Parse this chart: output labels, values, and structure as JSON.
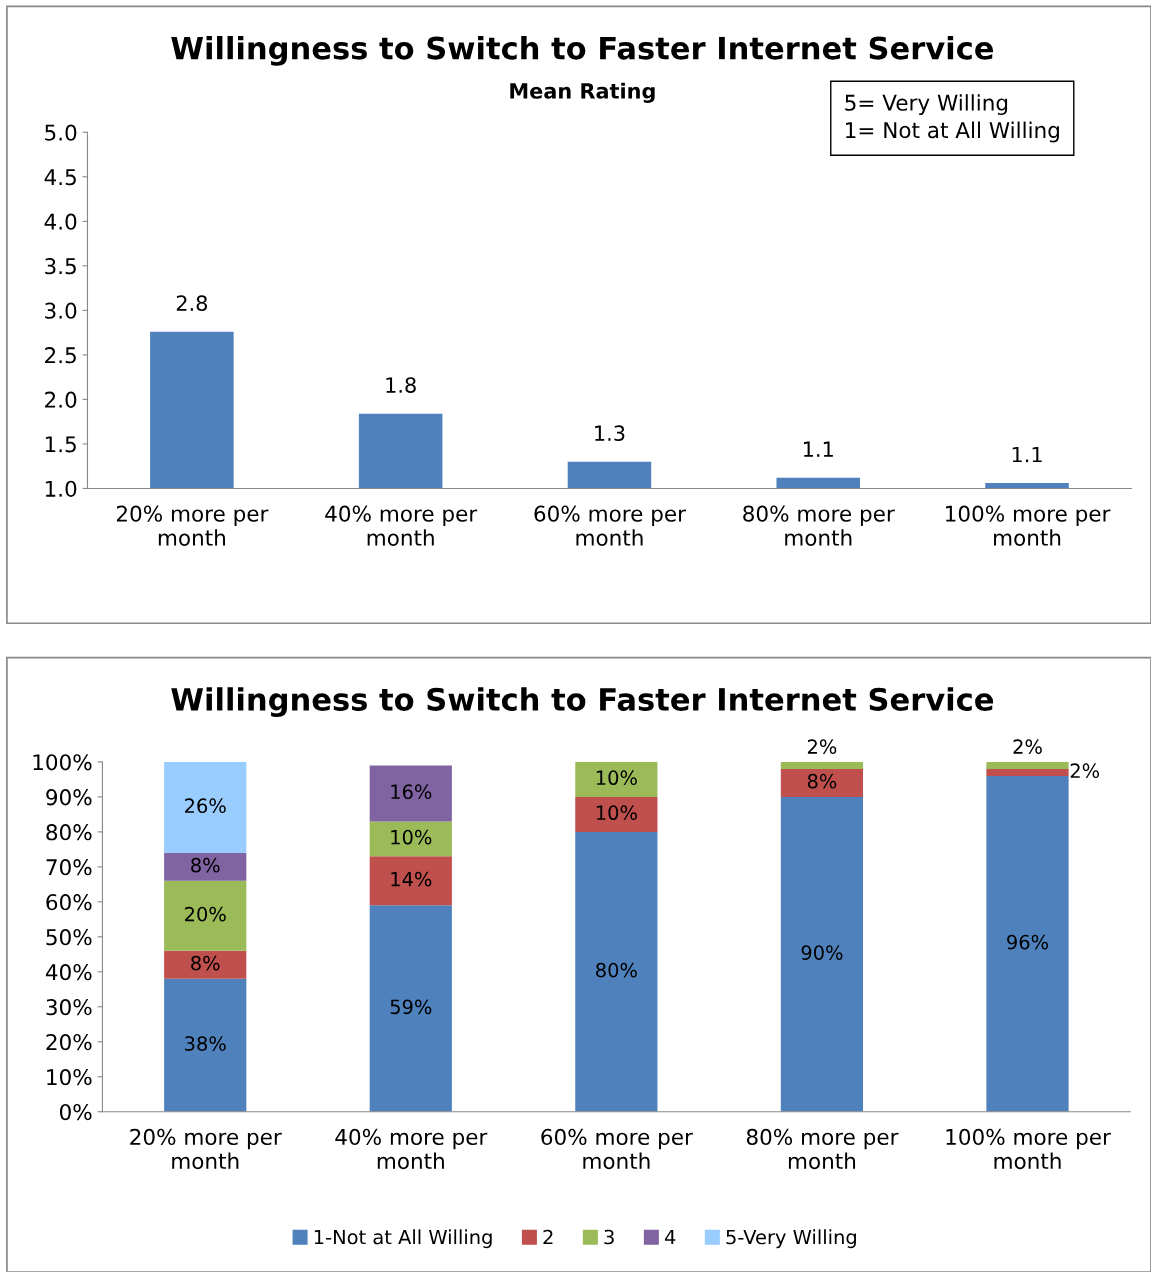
{
  "chart_data": [
    {
      "type": "bar",
      "title": "Willingness to Switch to Faster Internet Service",
      "subtitle": "Mean Rating",
      "categories": [
        "20% more per month",
        "40% more per month",
        "60% more per month",
        "80% more per month",
        "100% more per month"
      ],
      "values": [
        2.76,
        1.84,
        1.3,
        1.12,
        1.06
      ],
      "color": "#4f81bd",
      "value_labels": [
        "2.8",
        "1.8",
        "1.3",
        "1.1",
        "1.1"
      ],
      "ylim": [
        1.0,
        5.0
      ],
      "yticks": [
        {
          "value": 1.0,
          "label": "1.0"
        },
        {
          "value": 1.5,
          "label": "1.5"
        },
        {
          "value": 2.0,
          "label": "2.0"
        },
        {
          "value": 2.5,
          "label": "2.5"
        },
        {
          "value": 3.0,
          "label": "3.0"
        },
        {
          "value": 3.5,
          "label": "3.5"
        },
        {
          "value": 4.0,
          "label": "4.0"
        },
        {
          "value": 4.5,
          "label": "4.5"
        },
        {
          "value": 5.0,
          "label": "5.0"
        }
      ],
      "annotations": [
        "5= Very Willing\n1= Not at All Willing"
      ],
      "grid": false,
      "legend": false
    },
    {
      "type": "bar",
      "stacked": true,
      "title": "Willingness to Switch to Faster Internet Service",
      "categories": [
        "20% more per month",
        "40% more per month",
        "60% more per month",
        "80% more per month",
        "100% more per month"
      ],
      "series": [
        {
          "name": "1-Not at All Willing",
          "color": "#4f81bd",
          "values": [
            38,
            59,
            80,
            90,
            96
          ],
          "value_labels": [
            "38%",
            "59%",
            "80%",
            "90%",
            "96%"
          ]
        },
        {
          "name": "2",
          "color": "#c0504d",
          "values": [
            8,
            14,
            10,
            8,
            2
          ],
          "value_labels": [
            "8%",
            "14%",
            "10%",
            "8%",
            "2%"
          ]
        },
        {
          "name": "3",
          "color": "#9bbb59",
          "values": [
            20,
            10,
            10,
            2,
            2
          ],
          "value_labels": [
            "20%",
            "10%",
            "10%",
            "2%",
            "2%"
          ]
        },
        {
          "name": "4",
          "color": "#8064a2",
          "values": [
            8,
            16,
            null,
            null,
            null
          ],
          "value_labels": [
            "8%",
            "16%",
            null,
            null,
            null
          ]
        },
        {
          "name": "5-Very Willing",
          "color": "#99ccff",
          "values": [
            26,
            null,
            null,
            null,
            null
          ],
          "value_labels": [
            "26%",
            null,
            null,
            null,
            null
          ]
        }
      ],
      "ylim": [
        0,
        100
      ],
      "yticks": [
        {
          "value": 0,
          "label": "0%"
        },
        {
          "value": 10,
          "label": "10%"
        },
        {
          "value": 20,
          "label": "20%"
        },
        {
          "value": 30,
          "label": "30%"
        },
        {
          "value": 40,
          "label": "40%"
        },
        {
          "value": 50,
          "label": "50%"
        },
        {
          "value": 60,
          "label": "60%"
        },
        {
          "value": 70,
          "label": "70%"
        },
        {
          "value": 80,
          "label": "80%"
        },
        {
          "value": 90,
          "label": "90%"
        },
        {
          "value": 100,
          "label": "100%"
        }
      ],
      "grid": false,
      "legend": "bottom"
    }
  ]
}
